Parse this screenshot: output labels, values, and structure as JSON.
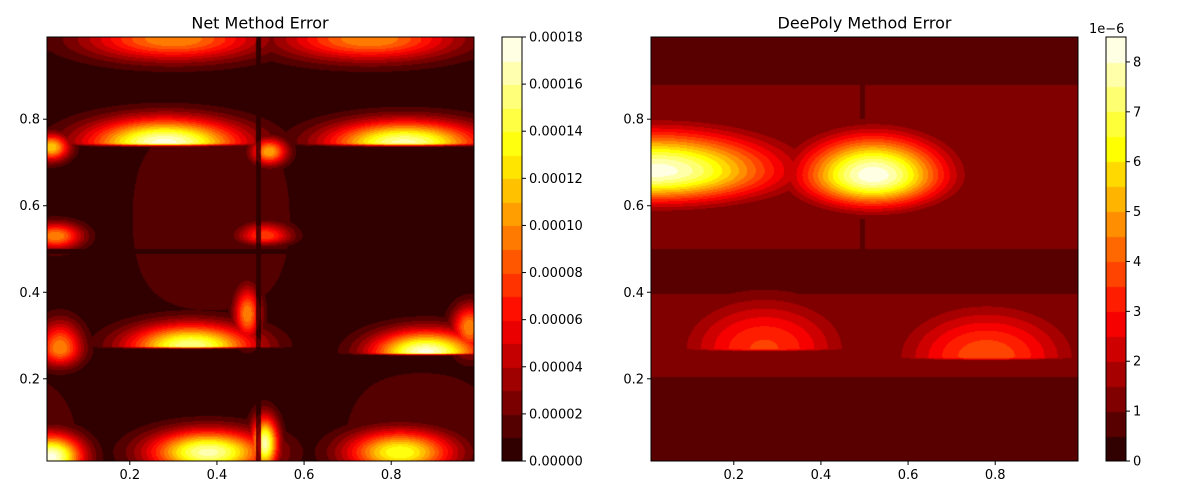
{
  "chart_data": [
    {
      "type": "heatmap",
      "subtype": "filled-contour",
      "title": "Net Method Error",
      "xlabel": "",
      "ylabel": "",
      "xlim": [
        0.01,
        0.99
      ],
      "ylim": [
        0.01,
        0.99
      ],
      "x_ticks": [
        0.2,
        0.4,
        0.6,
        0.8
      ],
      "y_ticks": [
        0.2,
        0.4,
        0.6,
        0.8
      ],
      "colormap": "hot",
      "colorbar": {
        "min": 0.0,
        "max": 0.00018,
        "levels": 18,
        "ticks": [
          0.0,
          2e-05,
          4e-05,
          6e-05,
          8e-05,
          0.0001,
          0.00012,
          0.00014,
          0.00016,
          0.00018
        ],
        "tick_labels": [
          "0.00000",
          "0.00002",
          "0.00004",
          "0.00006",
          "0.00008",
          "0.00010",
          "0.00012",
          "0.00014",
          "0.00016",
          "0.00018"
        ],
        "offset_label": ""
      },
      "hotspots": [
        {
          "x": 0.28,
          "y": 0.745,
          "value": 0.000175
        },
        {
          "x": 0.83,
          "y": 0.745,
          "value": 0.000165
        },
        {
          "x": 0.34,
          "y": 0.275,
          "value": 0.00016
        },
        {
          "x": 0.88,
          "y": 0.26,
          "value": 0.000175
        },
        {
          "x": 0.02,
          "y": 0.02,
          "value": 0.000175
        },
        {
          "x": 0.38,
          "y": 0.03,
          "value": 0.000165
        },
        {
          "x": 0.51,
          "y": 0.05,
          "value": 0.000165
        },
        {
          "x": 0.82,
          "y": 0.03,
          "value": 0.00014
        },
        {
          "x": 0.3,
          "y": 0.985,
          "value": 0.0001
        },
        {
          "x": 0.75,
          "y": 0.985,
          "value": 0.0001
        },
        {
          "x": 0.02,
          "y": 0.735,
          "value": 0.00012
        },
        {
          "x": 0.52,
          "y": 0.725,
          "value": 0.00011
        },
        {
          "x": 0.03,
          "y": 0.53,
          "value": 0.0001
        },
        {
          "x": 0.51,
          "y": 0.53,
          "value": 8e-05
        },
        {
          "x": 0.04,
          "y": 0.27,
          "value": 0.0001
        },
        {
          "x": 0.47,
          "y": 0.35,
          "value": 0.0001
        },
        {
          "x": 0.98,
          "y": 0.32,
          "value": 0.0001
        }
      ]
    },
    {
      "type": "heatmap",
      "subtype": "filled-contour",
      "title": "DeePoly Method Error",
      "xlabel": "",
      "ylabel": "",
      "xlim": [
        0.01,
        0.99
      ],
      "ylim": [
        0.01,
        0.99
      ],
      "x_ticks": [
        0.2,
        0.4,
        0.6,
        0.8
      ],
      "y_ticks": [
        0.2,
        0.4,
        0.6,
        0.8
      ],
      "colormap": "hot",
      "colorbar": {
        "min": 0.0,
        "max": 8.5e-06,
        "levels": 17,
        "ticks": [
          0,
          1e-06,
          2e-06,
          3e-06,
          4e-06,
          5e-06,
          6e-06,
          7e-06,
          8e-06
        ],
        "tick_labels": [
          "0",
          "1",
          "2",
          "3",
          "4",
          "5",
          "6",
          "7",
          "8"
        ],
        "offset_label": "1e−6"
      },
      "hotspots": [
        {
          "x": 0.02,
          "y": 0.68,
          "value": 8.3e-06
        },
        {
          "x": 0.52,
          "y": 0.67,
          "value": 8.4e-06
        },
        {
          "x": 0.27,
          "y": 0.27,
          "value": 3.6e-06
        },
        {
          "x": 0.78,
          "y": 0.25,
          "value": 3.9e-06
        }
      ]
    }
  ]
}
